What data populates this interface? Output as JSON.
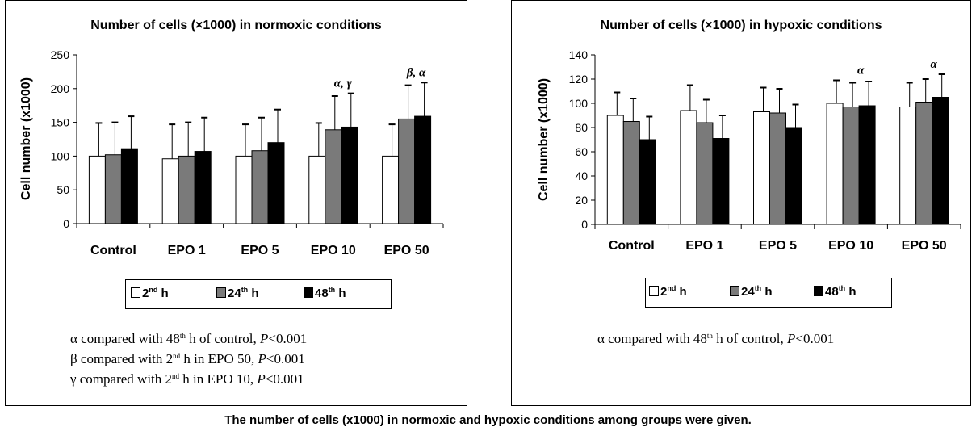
{
  "caption": "The number of cells (x1000) in normoxic and hypoxic conditions among groups were given.",
  "legend": {
    "items": [
      {
        "prefix": "2",
        "sup": "nd",
        "suffix": " h",
        "color": "#ffffff"
      },
      {
        "prefix": "24",
        "sup": "th",
        "suffix": " h",
        "color": "#7a7a7a"
      },
      {
        "prefix": "48",
        "sup": "th",
        "suffix": " h",
        "color": "#000000"
      }
    ]
  },
  "colors": {
    "bar_2nd": "#ffffff",
    "bar_24th": "#7a7a7a",
    "bar_48th": "#000000",
    "axis": "#000000"
  },
  "chart_data": [
    {
      "type": "bar",
      "title": "Number of cells (×1000) in normoxic conditions",
      "ylabel": "Cell number (x1000)",
      "xlabel": "",
      "ylim": [
        0,
        250
      ],
      "yticks": [
        0,
        50,
        100,
        150,
        200,
        250
      ],
      "categories": [
        "Control",
        "EPO 1",
        "EPO 5",
        "EPO 10",
        "EPO 50"
      ],
      "series": [
        {
          "name": "2nd h",
          "values": [
            100,
            96,
            100,
            100,
            100
          ],
          "errors": [
            49,
            51,
            47,
            49,
            47
          ]
        },
        {
          "name": "24th h",
          "values": [
            102,
            100,
            108,
            139,
            155
          ],
          "errors": [
            48,
            50,
            49,
            50,
            50
          ]
        },
        {
          "name": "48th h",
          "values": [
            111,
            107,
            120,
            143,
            159
          ],
          "errors": [
            48,
            50,
            49,
            50,
            50
          ]
        }
      ],
      "annotations": [
        {
          "category": "EPO 10",
          "text": "α, γ"
        },
        {
          "category": "EPO 50",
          "text": "β, α"
        }
      ],
      "notes": [
        {
          "sym": "α",
          "a": " compared with ",
          "n": "48",
          "sup": "th",
          "b": " h of control, ",
          "p": "P",
          "c": "<0.001"
        },
        {
          "sym": "β",
          "a": " compared with ",
          "n": "2",
          "sup": "nd",
          "b": " h in EPO 50, ",
          "p": "P",
          "c": "<0.001"
        },
        {
          "sym": "γ",
          "a": " compared with ",
          "n": "2",
          "sup": "nd",
          "b": " h in EPO 10, ",
          "p": "P",
          "c": "<0.001"
        }
      ]
    },
    {
      "type": "bar",
      "title": "Number of cells (×1000) in hypoxic conditions",
      "ylabel": "Cell number (x1000)",
      "xlabel": "",
      "ylim": [
        0,
        140
      ],
      "yticks": [
        0,
        20,
        40,
        60,
        80,
        100,
        120,
        140
      ],
      "categories": [
        "Control",
        "EPO 1",
        "EPO 5",
        "EPO 10",
        "EPO 50"
      ],
      "series": [
        {
          "name": "2nd h",
          "values": [
            90,
            94,
            93,
            100,
            97
          ],
          "errors": [
            19,
            21,
            20,
            19,
            20
          ]
        },
        {
          "name": "24th h",
          "values": [
            85,
            84,
            92,
            97,
            101
          ],
          "errors": [
            19,
            19,
            20,
            20,
            19
          ]
        },
        {
          "name": "48th h",
          "values": [
            70,
            71,
            80,
            98,
            105
          ],
          "errors": [
            19,
            19,
            19,
            20,
            19
          ]
        }
      ],
      "annotations": [
        {
          "category": "EPO 10",
          "text": "α"
        },
        {
          "category": "EPO 50",
          "text": "α"
        }
      ],
      "notes": [
        {
          "sym": "α",
          "a": " compared with ",
          "n": "48",
          "sup": "th",
          "b": " h of control, ",
          "p": "P",
          "c": "<0.001"
        }
      ]
    }
  ]
}
